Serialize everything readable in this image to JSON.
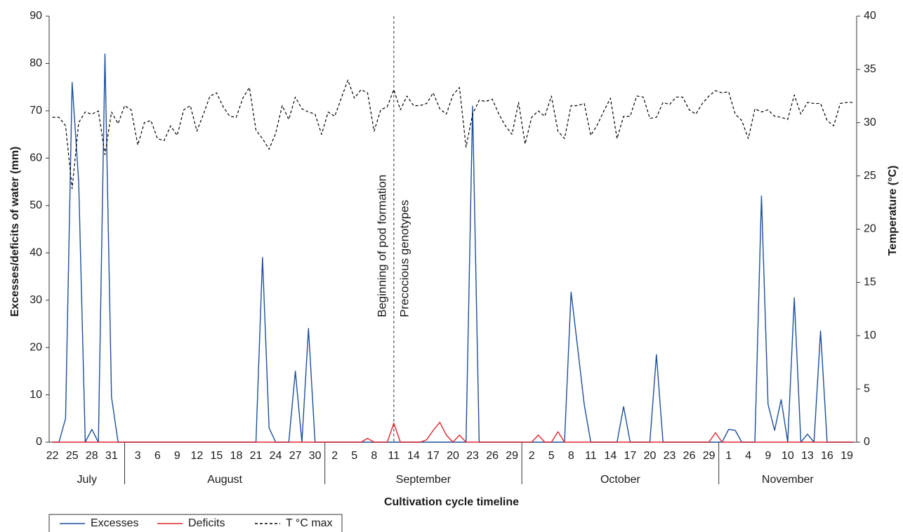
{
  "chart_data": {
    "type": "line",
    "categories": [
      "22",
      null,
      null,
      "25",
      null,
      null,
      "28",
      null,
      null,
      "31",
      null,
      null,
      null,
      "3",
      null,
      null,
      "6",
      null,
      null,
      "9",
      null,
      null,
      "12",
      null,
      null,
      "15",
      null,
      null,
      "18",
      null,
      null,
      "21",
      null,
      null,
      "24",
      null,
      null,
      "27",
      null,
      null,
      "30",
      null,
      null,
      "2",
      null,
      null,
      "5",
      null,
      null,
      "8",
      null,
      null,
      "11",
      null,
      null,
      "14",
      null,
      null,
      "17",
      null,
      null,
      "20",
      null,
      null,
      "23",
      null,
      null,
      "26",
      null,
      null,
      "29",
      null,
      null,
      "2",
      null,
      null,
      "5",
      null,
      null,
      "8",
      null,
      null,
      "11",
      null,
      null,
      "14",
      null,
      null,
      "17",
      null,
      null,
      "20",
      null,
      null,
      "23",
      null,
      null,
      "26",
      null,
      null,
      "29",
      null,
      null,
      "1",
      null,
      null,
      "4",
      null,
      null,
      "9",
      null,
      null,
      "10",
      null,
      null,
      "13",
      null,
      null,
      "16",
      null,
      null,
      "19",
      null
    ],
    "months": [
      "July",
      "August",
      "September",
      "October",
      "November"
    ],
    "series": [
      {
        "name": "Excesses",
        "color": "#1c4f9c",
        "values": [
          0,
          0,
          5,
          76,
          55,
          0,
          2.7,
          0,
          82,
          9.5,
          0,
          0,
          0,
          0,
          0,
          0,
          0,
          0,
          0,
          0,
          0,
          0,
          0,
          0,
          0,
          0,
          0,
          0,
          0,
          0,
          0,
          0,
          39,
          3,
          0,
          0,
          0,
          15,
          0,
          24,
          0,
          0,
          0,
          0,
          0,
          0,
          0,
          0,
          0,
          0,
          0,
          0,
          0,
          0,
          0,
          0,
          0,
          0,
          0,
          0,
          0,
          0,
          0,
          0,
          71,
          0,
          0,
          0,
          0,
          0,
          0,
          0,
          0,
          0,
          0,
          0,
          0,
          0,
          0,
          31.7,
          20,
          8,
          0,
          0,
          0,
          0,
          0,
          7.5,
          0,
          0,
          0,
          0,
          18.5,
          0,
          0,
          0,
          0,
          0,
          0,
          0,
          0,
          0,
          0,
          2.7,
          2.5,
          0,
          0,
          0,
          52,
          8,
          2.5,
          9,
          0,
          30.5,
          0,
          1.7,
          0,
          23.5,
          0,
          0,
          0,
          0,
          0
        ]
      },
      {
        "name": "Deficits",
        "color": "#e0262d",
        "values": [
          0,
          0,
          0,
          0,
          0,
          0,
          0,
          0,
          0,
          0,
          0,
          0,
          0,
          0,
          0,
          0,
          0,
          0,
          0,
          0,
          0,
          0,
          0,
          0,
          0,
          0,
          0,
          0,
          0,
          0,
          0,
          0,
          0,
          0,
          0,
          0,
          0,
          0,
          0,
          0,
          0,
          0,
          0,
          0,
          0,
          0,
          0,
          0,
          0.8,
          0,
          0,
          0,
          4,
          0,
          0,
          0,
          0,
          0.5,
          2.5,
          4.2,
          1.5,
          0,
          1.5,
          0,
          0,
          0,
          0,
          0,
          0,
          0,
          0,
          0,
          0,
          0,
          1.5,
          0,
          0,
          2.2,
          0,
          0,
          0,
          0,
          0,
          0,
          0,
          0,
          0,
          0,
          0,
          0,
          0,
          0,
          0,
          0,
          0,
          0,
          0,
          0,
          0,
          0,
          0,
          2,
          0,
          0,
          0,
          0,
          0,
          0,
          0,
          0,
          0,
          0,
          0,
          0,
          0,
          0,
          0,
          0,
          0,
          0,
          0,
          0,
          0
        ]
      },
      {
        "name": "T °C max",
        "color": "#000000",
        "dash": true,
        "axis": "y2",
        "values": [
          30.5,
          30.5,
          29.7,
          23.8,
          30.0,
          31.0,
          30.8,
          31.1,
          27.0,
          31.0,
          29.9,
          31.6,
          31.2,
          27.9,
          30.0,
          30.2,
          28.5,
          28.3,
          29.7,
          28.8,
          31.2,
          31.6,
          29.2,
          30.8,
          32.5,
          32.8,
          31.5,
          30.6,
          30.5,
          32.3,
          33.3,
          29.3,
          28.5,
          27.5,
          29.0,
          31.6,
          30.3,
          32.4,
          31.3,
          31.0,
          30.8,
          28.9,
          31.0,
          30.6,
          32.3,
          34.0,
          32.3,
          33.1,
          32.8,
          29.2,
          31.2,
          31.5,
          33.1,
          31.2,
          32.5,
          31.6,
          31.6,
          31.8,
          32.8,
          31.3,
          30.8,
          32.6,
          33.3,
          27.7,
          30.8,
          32.1,
          32.0,
          32.2,
          30.8,
          29.7,
          28.9,
          31.9,
          28.0,
          30.5,
          31.1,
          30.6,
          32.5,
          29.2,
          28.5,
          31.6,
          31.6,
          31.8,
          28.8,
          29.8,
          31.1,
          32.3,
          28.5,
          30.6,
          30.6,
          32.5,
          32.4,
          30.4,
          30.5,
          31.9,
          31.7,
          32.4,
          32.4,
          31.2,
          30.8,
          31.8,
          32.5,
          33.0,
          32.8,
          32.9,
          30.8,
          30.2,
          28.5,
          31.3,
          31.0,
          31.2,
          30.6,
          30.5,
          30.3,
          32.6,
          30.8,
          31.9,
          31.8,
          31.8,
          30.2,
          29.7,
          31.8,
          31.9,
          31.9
        ]
      }
    ],
    "ylim": [
      0,
      90
    ],
    "yticks": [
      0,
      10,
      20,
      30,
      40,
      50,
      60,
      70,
      80,
      90
    ],
    "y2lim": [
      0,
      40
    ],
    "y2ticks": [
      0,
      5,
      10,
      15,
      20,
      25,
      30,
      35,
      40
    ],
    "ylabel": "Excesses/deficits of water (mm)",
    "y2label": "Temperature (°C)",
    "xlabel": "Cultivation cycle timeline",
    "annotations": [
      "Beginning of pod formation",
      "Precocious genotypes"
    ],
    "marker_index": 52,
    "legend": "bottom-left"
  }
}
